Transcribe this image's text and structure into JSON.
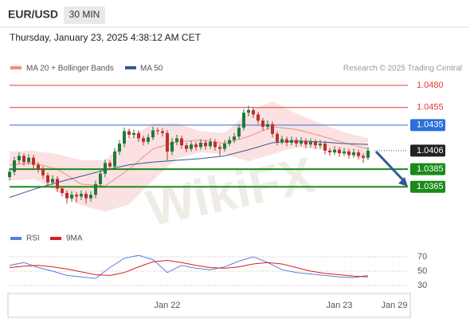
{
  "header": {
    "symbol": "EUR/USD",
    "interval": "30 MIN",
    "timestamp": "Thursday, January 23, 2025 4:38:12 AM CET"
  },
  "chart_data": [
    {
      "type": "candlestick",
      "legend": [
        {
          "name": "MA 20 + Bollinger Bands",
          "color": "#f08c8c"
        },
        {
          "name": "MA 50",
          "color": "#2f5b94"
        }
      ],
      "credit": "Research © 2025 Trading Central",
      "watermark": "WikiFX",
      "ylim": [
        1.032,
        1.049
      ],
      "up_color": "#1f7a3a",
      "down_color": "#b8322a",
      "categories": [
        null,
        null,
        null,
        null,
        null,
        null,
        null,
        null,
        null,
        null,
        null,
        null,
        null,
        null,
        null,
        null,
        null,
        null,
        null,
        null,
        null,
        null,
        null,
        null,
        null,
        null,
        null,
        null,
        null,
        null,
        null,
        null,
        null,
        "Jan 22",
        null,
        null,
        null,
        null,
        null,
        null,
        null,
        null,
        null,
        null,
        null,
        null,
        null,
        null,
        null,
        null,
        null,
        null,
        null,
        null,
        null,
        null,
        null,
        null,
        null,
        null,
        null,
        null,
        null,
        null,
        null,
        null,
        null,
        null,
        null,
        "Jan 23",
        null,
        null,
        null,
        null,
        null,
        null
      ],
      "x_end_label": "Jan 29",
      "ohlc": [
        [
          1.0376,
          1.0386,
          1.0372,
          1.0382
        ],
        [
          1.0382,
          1.0399,
          1.0378,
          1.0395
        ],
        [
          1.0395,
          1.0404,
          1.0391,
          1.04
        ],
        [
          1.04,
          1.0403,
          1.0389,
          1.0393
        ],
        [
          1.0393,
          1.0402,
          1.039,
          1.0398
        ],
        [
          1.0398,
          1.0401,
          1.0386,
          1.039
        ],
        [
          1.039,
          1.0393,
          1.0381,
          1.0385
        ],
        [
          1.0385,
          1.0388,
          1.0374,
          1.0378
        ],
        [
          1.0378,
          1.0381,
          1.0366,
          1.037
        ],
        [
          1.037,
          1.0378,
          1.0367,
          1.0374
        ],
        [
          1.0374,
          1.0377,
          1.0359,
          1.0363
        ],
        [
          1.0363,
          1.0366,
          1.0354,
          1.0358
        ],
        [
          1.0358,
          1.0361,
          1.0346,
          1.0352
        ],
        [
          1.0352,
          1.036,
          1.0348,
          1.0356
        ],
        [
          1.0356,
          1.0359,
          1.0347,
          1.0354
        ],
        [
          1.0354,
          1.0361,
          1.035,
          1.0357
        ],
        [
          1.0357,
          1.036,
          1.0346,
          1.0352
        ],
        [
          1.0352,
          1.036,
          1.0348,
          1.0356
        ],
        [
          1.0356,
          1.0372,
          1.0352,
          1.0368
        ],
        [
          1.0368,
          1.0384,
          1.0364,
          1.038
        ],
        [
          1.038,
          1.0396,
          1.0376,
          1.0392
        ],
        [
          1.0392,
          1.0395,
          1.0384,
          1.0388
        ],
        [
          1.0388,
          1.0409,
          1.0385,
          1.0405
        ],
        [
          1.0405,
          1.0418,
          1.0401,
          1.0414
        ],
        [
          1.0414,
          1.0432,
          1.041,
          1.0428
        ],
        [
          1.0428,
          1.0431,
          1.042,
          1.0424
        ],
        [
          1.0424,
          1.043,
          1.042,
          1.0426
        ],
        [
          1.0426,
          1.0429,
          1.0416,
          1.042
        ],
        [
          1.042,
          1.0423,
          1.0412,
          1.0416
        ],
        [
          1.0416,
          1.0425,
          1.0413,
          1.0421
        ],
        [
          1.0421,
          1.0433,
          1.0418,
          1.0429
        ],
        [
          1.0429,
          1.0432,
          1.0424,
          1.0428
        ],
        [
          1.0428,
          1.0431,
          1.0422,
          1.0426
        ],
        [
          1.0426,
          1.0429,
          1.0395,
          1.0405
        ],
        [
          1.0405,
          1.042,
          1.0401,
          1.0416
        ],
        [
          1.0416,
          1.0424,
          1.0412,
          1.042
        ],
        [
          1.042,
          1.0423,
          1.0408,
          1.0412
        ],
        [
          1.0412,
          1.0415,
          1.0404,
          1.0408
        ],
        [
          1.0408,
          1.0417,
          1.0405,
          1.0413
        ],
        [
          1.0413,
          1.0416,
          1.0406,
          1.041
        ],
        [
          1.041,
          1.0419,
          1.0407,
          1.0415
        ],
        [
          1.0415,
          1.0418,
          1.0407,
          1.0411
        ],
        [
          1.0411,
          1.042,
          1.0408,
          1.0416
        ],
        [
          1.0416,
          1.0419,
          1.0406,
          1.041
        ],
        [
          1.041,
          1.0413,
          1.04,
          1.0408
        ],
        [
          1.0408,
          1.0418,
          1.0405,
          1.0414
        ],
        [
          1.0414,
          1.0422,
          1.0411,
          1.0418
        ],
        [
          1.0418,
          1.0426,
          1.0415,
          1.0422
        ],
        [
          1.0422,
          1.0436,
          1.0419,
          1.0432
        ],
        [
          1.0432,
          1.0453,
          1.0429,
          1.0449
        ],
        [
          1.0449,
          1.0457,
          1.0445,
          1.0452
        ],
        [
          1.0452,
          1.0455,
          1.0443,
          1.0447
        ],
        [
          1.0447,
          1.045,
          1.0436,
          1.044
        ],
        [
          1.044,
          1.0443,
          1.0429,
          1.0433
        ],
        [
          1.0433,
          1.044,
          1.043,
          1.0436
        ],
        [
          1.0436,
          1.0439,
          1.0421,
          1.0425
        ],
        [
          1.0425,
          1.0428,
          1.0412,
          1.0416
        ],
        [
          1.0416,
          1.0423,
          1.0413,
          1.0419
        ],
        [
          1.0419,
          1.0422,
          1.0411,
          1.0415
        ],
        [
          1.0415,
          1.0422,
          1.0412,
          1.0418
        ],
        [
          1.0418,
          1.0421,
          1.041,
          1.0414
        ],
        [
          1.0414,
          1.0421,
          1.0411,
          1.0417
        ],
        [
          1.0417,
          1.042,
          1.0409,
          1.0413
        ],
        [
          1.0413,
          1.042,
          1.041,
          1.0416
        ],
        [
          1.0416,
          1.0419,
          1.0408,
          1.0412
        ],
        [
          1.0412,
          1.0418,
          1.0409,
          1.0414
        ],
        [
          1.0414,
          1.0417,
          1.0402,
          1.0406
        ],
        [
          1.0406,
          1.0409,
          1.04,
          1.0404
        ],
        [
          1.0404,
          1.0411,
          1.0401,
          1.0407
        ],
        [
          1.0407,
          1.041,
          1.0399,
          1.0403
        ],
        [
          1.0403,
          1.0409,
          1.04,
          1.0405
        ],
        [
          1.0405,
          1.0408,
          1.0397,
          1.0401
        ],
        [
          1.0401,
          1.0408,
          1.0398,
          1.0404
        ],
        [
          1.0404,
          1.0407,
          1.0396,
          1.04
        ],
        [
          1.04,
          1.0403,
          1.0392,
          1.0398
        ],
        [
          1.0398,
          1.041,
          1.0395,
          1.0406
        ]
      ],
      "overlay_x": [
        0,
        5,
        10,
        15,
        20,
        25,
        30,
        35,
        40,
        45,
        50,
        55,
        60,
        65,
        70,
        75
      ],
      "ma20": [
        1.039,
        1.0392,
        1.0385,
        1.0368,
        1.0366,
        1.0385,
        1.0408,
        1.0416,
        1.0418,
        1.0414,
        1.0422,
        1.0433,
        1.043,
        1.0423,
        1.0415,
        1.0408
      ],
      "ma50": [
        1.0353,
        1.0362,
        1.037,
        1.0377,
        1.0384,
        1.039,
        1.0393,
        1.0395,
        1.0397,
        1.04,
        1.0407,
        1.0415,
        1.0417,
        1.0416,
        1.0414,
        1.0413
      ],
      "bb_upper": [
        1.0405,
        1.0406,
        1.0402,
        1.0395,
        1.0395,
        1.042,
        1.0437,
        1.0437,
        1.0428,
        1.0426,
        1.045,
        1.0462,
        1.0448,
        1.0437,
        1.0427,
        1.042
      ],
      "bb_lower": [
        1.0372,
        1.0374,
        1.036,
        1.0344,
        1.0337,
        1.0345,
        1.0372,
        1.0397,
        1.0404,
        1.0402,
        1.0394,
        1.0402,
        1.041,
        1.0407,
        1.0402,
        1.0396
      ],
      "band_color": "#f7c9c9",
      "levels": [
        {
          "value": 1.048,
          "label": "1.0480",
          "color": "#e03c31",
          "style": "text"
        },
        {
          "value": 1.0455,
          "label": "1.0455",
          "color": "#e03c31",
          "style": "text"
        },
        {
          "value": 1.0435,
          "label": "1.0435",
          "color": "#2a6fdb",
          "style": "box"
        },
        {
          "value": 1.0406,
          "label": "1.0406",
          "color": "#222222",
          "style": "current"
        },
        {
          "value": 1.0385,
          "label": "1.0385",
          "color": "#1a8a1a",
          "style": "box"
        },
        {
          "value": 1.0365,
          "label": "1.0365",
          "color": "#1a8a1a",
          "style": "box"
        }
      ]
    },
    {
      "type": "line",
      "ylim": [
        20,
        80
      ],
      "yticks": [
        70,
        50,
        30
      ],
      "x": [
        0,
        3,
        6,
        9,
        12,
        15,
        18,
        21,
        24,
        27,
        30,
        33,
        36,
        39,
        42,
        45,
        48,
        51,
        54,
        57,
        60,
        63,
        66,
        69,
        72,
        75
      ],
      "series": [
        {
          "name": "RSI",
          "color": "#5b7fd6",
          "values": [
            58,
            62,
            55,
            50,
            44,
            42,
            40,
            55,
            68,
            72,
            66,
            48,
            58,
            54,
            52,
            56,
            64,
            70,
            62,
            52,
            48,
            46,
            44,
            42,
            41,
            44
          ]
        },
        {
          "name": "9MA",
          "color": "#d62020",
          "values": [
            55,
            57,
            58,
            56,
            53,
            49,
            45,
            44,
            48,
            56,
            63,
            65,
            62,
            58,
            55,
            54,
            56,
            60,
            62,
            60,
            55,
            50,
            47,
            45,
            43,
            42
          ]
        }
      ]
    }
  ]
}
